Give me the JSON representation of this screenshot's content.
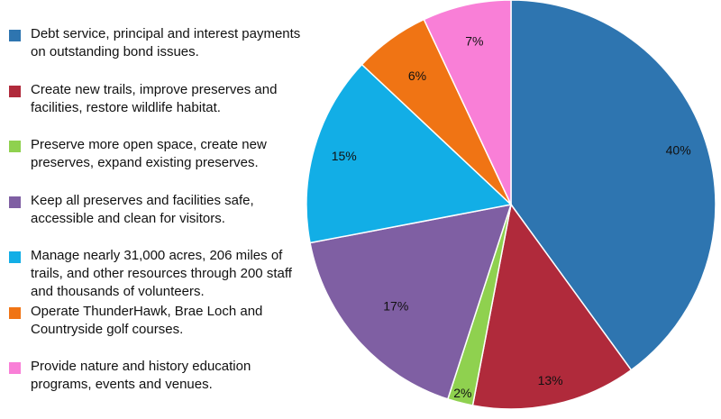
{
  "chart_data": {
    "type": "pie",
    "title": "",
    "start": "top",
    "direction": "clockwise",
    "legend_position": "left",
    "slices": [
      {
        "label": "Debt service, principal and interest payments on outstanding bond issues.",
        "value": 40,
        "display": "40%",
        "color": "#2e75b0"
      },
      {
        "label": "Create new trails, improve preserves and facilities, restore wildlife habitat.",
        "value": 13,
        "display": "13%",
        "color": "#b02a3b"
      },
      {
        "label": "Preserve more open space, create new preserves, expand existing preserves.",
        "value": 2,
        "display": "2%",
        "color": "#8fd14f"
      },
      {
        "label": "Keep all preserves and facilities safe, accessible and clean for visitors.",
        "value": 17,
        "display": "17%",
        "color": "#7f5fa3"
      },
      {
        "label": "Manage nearly 31,000 acres, 206 miles of trails, and other resources through 200 staff and thousands of volunteers.",
        "value": 15,
        "display": "15%",
        "color": "#12aee6"
      },
      {
        "label": "Operate ThunderHawk, Brae Loch and Countryside golf courses.",
        "value": 6,
        "display": "6%",
        "color": "#f07414"
      },
      {
        "label": "Provide nature and history education programs, events and venues.",
        "value": 7,
        "display": "7%",
        "color": "#f97fd7"
      }
    ]
  }
}
